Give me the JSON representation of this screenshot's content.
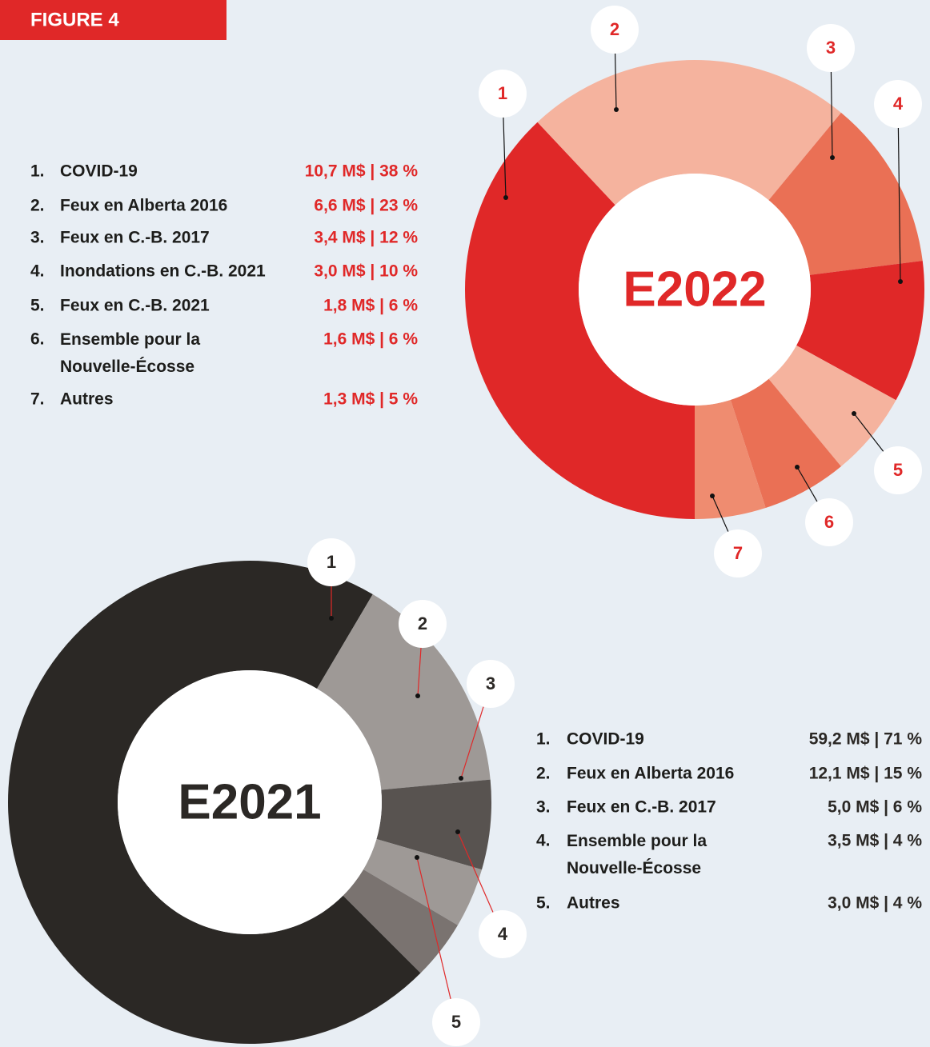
{
  "figure_label": "FIGURE 4",
  "chart_data": [
    {
      "type": "donut",
      "center_label": "E2022",
      "keys": [
        "1",
        "2",
        "3",
        "4",
        "5",
        "6",
        "7"
      ],
      "legend_keys": [
        "1.",
        "2.",
        "3.",
        "4.",
        "5.",
        "6.",
        "7."
      ],
      "categories": [
        "COVID-19",
        "Feux en Alberta 2016",
        "Feux en C.-B. 2017",
        "Inondations en C.-B. 2021",
        "Feux en C.-B. 2021",
        "Ensemble pour la\nNouvelle-Écosse",
        "Autres"
      ],
      "values": [
        38,
        23,
        12,
        10,
        6,
        6,
        5
      ],
      "value_labels": [
        "10,7 M$ | 38 %",
        "6,6 M$ | 23 %",
        "3,4 M$ | 12 %",
        "3,0 M$ | 10 %",
        "1,8 M$ | 6 %",
        "1,6 M$ | 6 %",
        "1,3 M$ | 5 %"
      ],
      "colors": [
        "#e02828",
        "#f5b39e",
        "#ea7055",
        "#e02828",
        "#f5b39e",
        "#ea7055",
        "#ef8c70"
      ],
      "label_color": "#e02828"
    },
    {
      "type": "donut",
      "center_label": "E2021",
      "keys": [
        "1",
        "2",
        "3",
        "4",
        "5"
      ],
      "legend_keys": [
        "1.",
        "2.",
        "3.",
        "4.",
        "5."
      ],
      "categories": [
        "COVID-19",
        "Feux en Alberta 2016",
        "Feux en C.-B. 2017",
        "Ensemble pour la\nNouvelle-Écosse",
        "Autres"
      ],
      "values": [
        71,
        15,
        6,
        4,
        4
      ],
      "value_labels": [
        "59,2 M$ | 71 %",
        "12,1 M$ | 15 %",
        "5,0 M$ | 6 %",
        "3,5 M$ | 4 %",
        "3,0 M$ | 4 %"
      ],
      "colors": [
        "#2b2825",
        "#9e9996",
        "#585350",
        "#9e9996",
        "#7a7370"
      ],
      "label_color": "#2b2825"
    }
  ]
}
